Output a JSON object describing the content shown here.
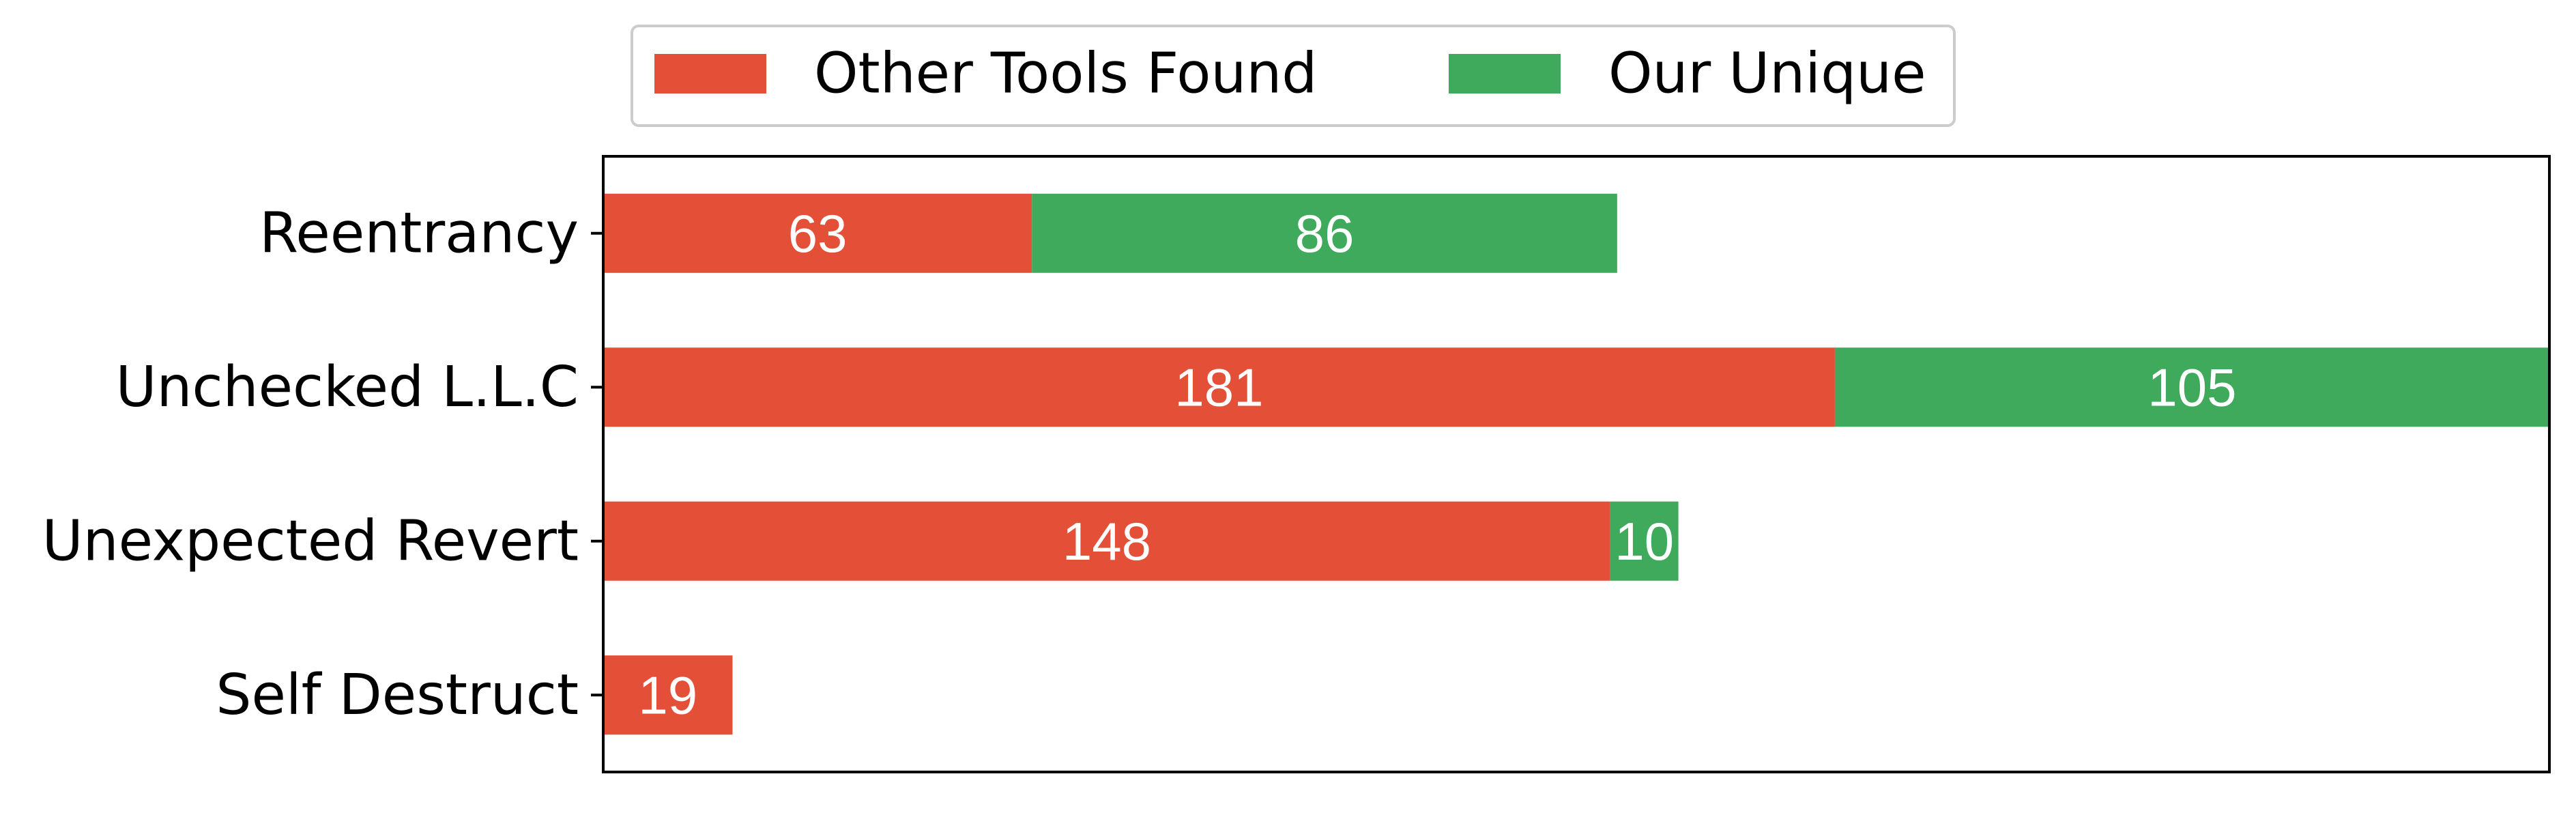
{
  "chart_data": {
    "type": "bar",
    "orientation": "horizontal",
    "stacked": true,
    "categories": [
      "Reentrancy",
      "Unchecked L.L.C",
      "Unexpected Revert",
      "Self Destruct"
    ],
    "series": [
      {
        "name": "Other Tools Found",
        "color": "#e34f37",
        "values": [
          63,
          181,
          148,
          19
        ]
      },
      {
        "name": "Our Unique",
        "color": "#3fa95c",
        "values": [
          86,
          105,
          10,
          0
        ]
      }
    ],
    "xlim": [
      0,
      286
    ],
    "grid": false,
    "legend_position": "top-center",
    "xlabel": "",
    "ylabel": "",
    "title": ""
  }
}
